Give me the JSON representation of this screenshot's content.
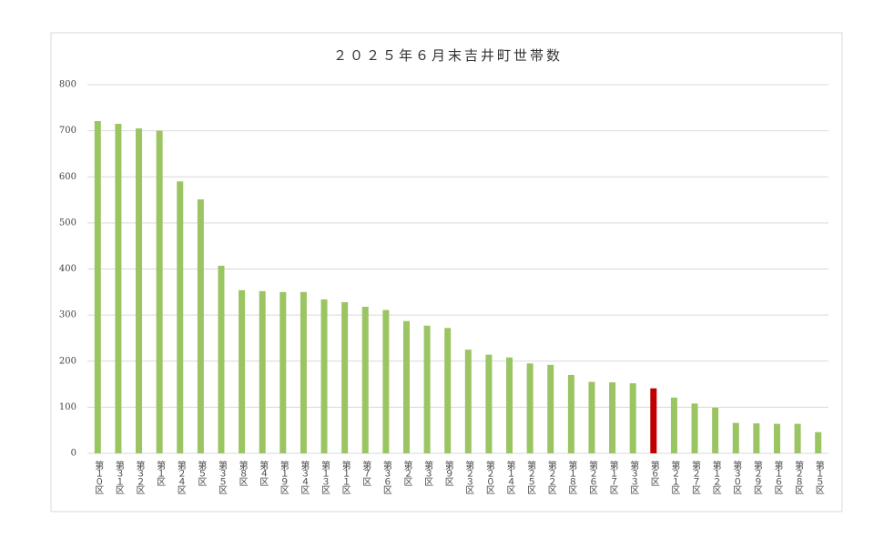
{
  "chart_data": {
    "type": "bar",
    "title": "２０２５年６月末吉井町世帯数",
    "categories": [
      "第１０区",
      "第３１区",
      "第３２区",
      "第１区",
      "第２４区",
      "第５区",
      "第３５区",
      "第８区",
      "第４区",
      "第１９区",
      "第３４区",
      "第１３区",
      "第１１区",
      "第７区",
      "第３６区",
      "第２区",
      "第３区",
      "第９区",
      "第２３区",
      "第２０区",
      "第１４区",
      "第２５区",
      "第２２区",
      "第１８区",
      "第２６区",
      "第１７区",
      "第３３区",
      "第６区",
      "第２１区",
      "第２７区",
      "第１２区",
      "第３０区",
      "第２９区",
      "第１６区",
      "第２８区",
      "第１５区"
    ],
    "values": [
      721,
      715,
      705,
      700,
      590,
      551,
      407,
      354,
      352,
      350,
      350,
      334,
      328,
      318,
      311,
      287,
      277,
      272,
      225,
      214,
      208,
      195,
      192,
      170,
      155,
      154,
      152,
      141,
      121,
      108,
      99,
      66,
      65,
      64,
      64,
      46
    ],
    "colors": [
      "#9bc462",
      "#9bc462",
      "#9bc462",
      "#9bc462",
      "#9bc462",
      "#9bc462",
      "#9bc462",
      "#9bc462",
      "#9bc462",
      "#9bc462",
      "#9bc462",
      "#9bc462",
      "#9bc462",
      "#9bc462",
      "#9bc462",
      "#9bc462",
      "#9bc462",
      "#9bc462",
      "#9bc462",
      "#9bc462",
      "#9bc462",
      "#9bc462",
      "#9bc462",
      "#9bc462",
      "#9bc462",
      "#9bc462",
      "#9bc462",
      "#c00000",
      "#9bc462",
      "#9bc462",
      "#9bc462",
      "#9bc462",
      "#9bc462",
      "#9bc462",
      "#9bc462",
      "#9bc462"
    ],
    "ylim": [
      0,
      800
    ],
    "yticks": [
      0,
      100,
      200,
      300,
      400,
      500,
      600,
      700,
      800
    ],
    "grid": true
  }
}
